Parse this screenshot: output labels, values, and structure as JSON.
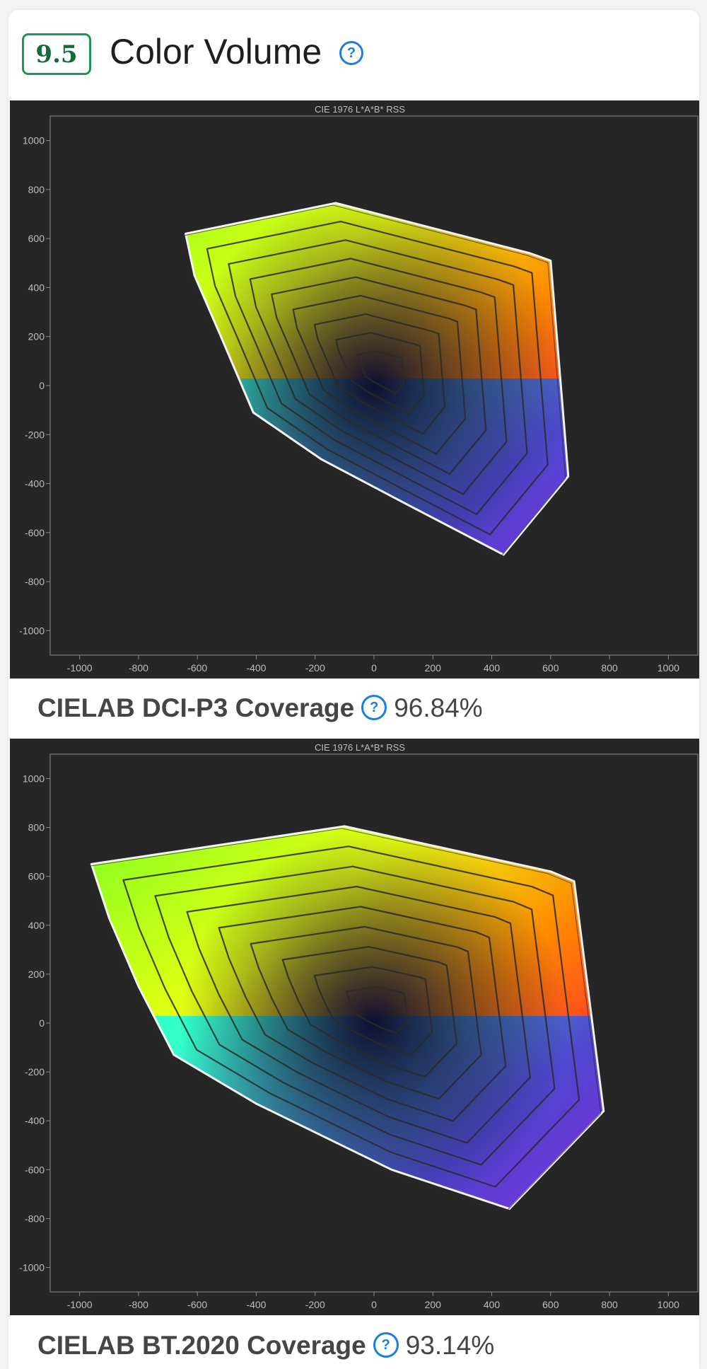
{
  "section": {
    "score": "9.5",
    "title": "Color Volume",
    "help_icon": "question-circle-icon"
  },
  "charts": [
    {
      "plot_title": "CIE 1976 L*A*B* RSS",
      "caption_label": "CIELAB DCI-P3 Coverage",
      "caption_value": "96.84%",
      "chart_data": {
        "type": "area",
        "title": "CIE 1976 L*A*B* RSS",
        "xlim": [
          -1100,
          1100
        ],
        "ylim": [
          -1100,
          1100
        ],
        "x_ticks": [
          "-1000",
          "-800",
          "-600",
          "-400",
          "-200",
          "0",
          "200",
          "400",
          "600",
          "800",
          "1000"
        ],
        "y_ticks": [
          "1000",
          "800",
          "600",
          "400",
          "200",
          "0",
          "-200",
          "-400",
          "-600",
          "-800",
          "-1000"
        ],
        "grid": false,
        "outer_boundary": [
          [
            -130,
            745
          ],
          [
            -640,
            620
          ],
          [
            -610,
            450
          ],
          [
            -520,
            200
          ],
          [
            -410,
            -110
          ],
          [
            -180,
            -300
          ],
          [
            120,
            -490
          ],
          [
            440,
            -690
          ],
          [
            660,
            -370
          ],
          [
            600,
            510
          ],
          [
            530,
            540
          ]
        ]
      }
    },
    {
      "plot_title": "CIE 1976 L*A*B* RSS",
      "caption_label": "CIELAB BT.2020 Coverage",
      "caption_value": "93.14%",
      "chart_data": {
        "type": "area",
        "title": "CIE 1976 L*A*B* RSS",
        "xlim": [
          -1100,
          1100
        ],
        "ylim": [
          -1100,
          1100
        ],
        "x_ticks": [
          "-1000",
          "-800",
          "-600",
          "-400",
          "-200",
          "0",
          "200",
          "400",
          "600",
          "800",
          "1000"
        ],
        "y_ticks": [
          "1000",
          "800",
          "600",
          "400",
          "200",
          "0",
          "-200",
          "-400",
          "-600",
          "-800",
          "-1000"
        ],
        "grid": false,
        "outer_boundary": [
          [
            -100,
            805
          ],
          [
            -960,
            650
          ],
          [
            -900,
            430
          ],
          [
            -800,
            150
          ],
          [
            -680,
            -130
          ],
          [
            -400,
            -330
          ],
          [
            60,
            -600
          ],
          [
            460,
            -760
          ],
          [
            780,
            -360
          ],
          [
            680,
            580
          ],
          [
            600,
            620
          ]
        ]
      }
    }
  ],
  "colors": {
    "score_border": "#1a9a4e",
    "help_icon": "#1a7ee0",
    "plot_background": "#262626"
  }
}
